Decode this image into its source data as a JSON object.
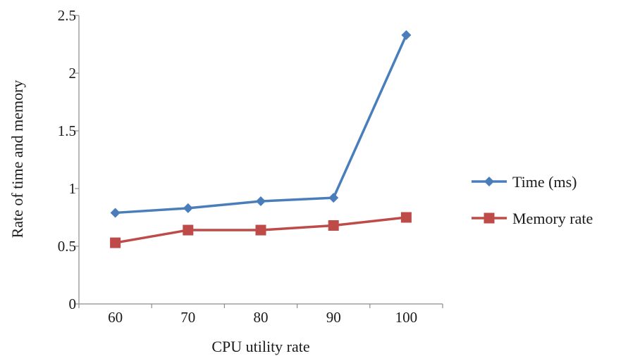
{
  "chart_data": {
    "type": "line",
    "title": "",
    "xlabel": "CPU utility rate",
    "ylabel": "Rate of time and memory",
    "categories": [
      "60",
      "70",
      "80",
      "90",
      "100"
    ],
    "ylim": [
      0,
      2.5
    ],
    "yticks": [
      "0",
      "0.5",
      "1",
      "1.5",
      "2",
      "2.5"
    ],
    "grid": false,
    "legend_position": "right",
    "series": [
      {
        "name": "Time (ms)",
        "values": [
          0.79,
          0.83,
          0.89,
          0.92,
          2.33
        ],
        "color": "#4a7ebb",
        "marker": "diamond"
      },
      {
        "name": "Memory rate",
        "values": [
          0.53,
          0.64,
          0.64,
          0.68,
          0.75
        ],
        "color": "#be4b48",
        "marker": "square"
      }
    ]
  }
}
